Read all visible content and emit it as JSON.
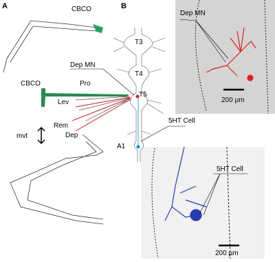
{
  "panel_a": {
    "label": "A",
    "cbco_top": "CBCO",
    "cbco": "CBCO",
    "dep_mn": "Dep MN",
    "pro": "Pro",
    "lev": "Lev",
    "rem": "Rem",
    "dep": "Dep",
    "mvt": "mvt"
  },
  "panel_b": {
    "label": "B",
    "ganglia": [
      "T3",
      "T4",
      "T5",
      "A1"
    ],
    "cell_5ht": "5HT Cell",
    "photo_top": {
      "label": "Dep MN",
      "scale_bar": "200 µm"
    },
    "photo_bottom": {
      "label": "5HT Cell",
      "scale_bar": "200 µm"
    }
  }
}
